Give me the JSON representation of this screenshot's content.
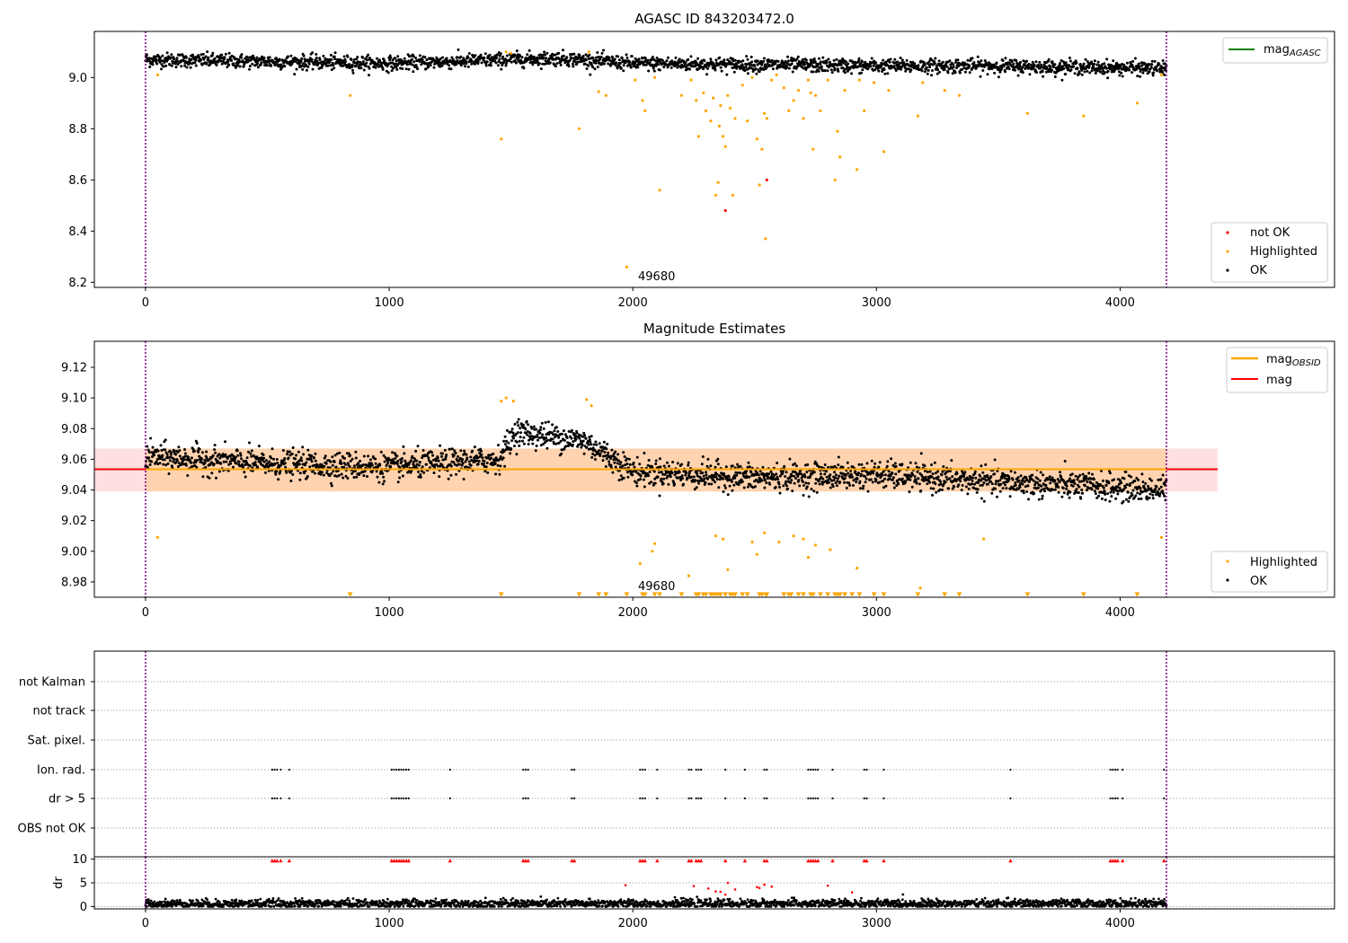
{
  "chart_data": [
    {
      "type": "scatter",
      "title": "AGASC ID 843203472.0",
      "xlabel": "",
      "ylabel": "",
      "xlim": [
        -210,
        4880
      ],
      "ylim": [
        8.18,
        9.18
      ],
      "xticks": [
        0,
        1000,
        2000,
        3000,
        4000
      ],
      "yticks": [
        8.2,
        8.4,
        8.6,
        8.8,
        9.0
      ],
      "ytick_labels": [
        "8.2",
        "8.4",
        "8.6",
        "8.8",
        "9.0"
      ],
      "annotation": {
        "text": "49680",
        "x": 2010,
        "y": 8.21
      },
      "vlines": [
        0,
        4190
      ],
      "legend_lines": [
        {
          "label_main": "mag",
          "label_sub": "AGASC",
          "color": "#008000"
        }
      ],
      "legend_markers": [
        {
          "label": "not OK",
          "color": "#ff0000"
        },
        {
          "label": "Highlighted",
          "color": "#ffa500"
        },
        {
          "label": "OK",
          "color": "#000000"
        }
      ],
      "series": [
        {
          "name": "OK",
          "color": "#000000",
          "x_range": [
            0,
            4190
          ],
          "trend": [
            [
              0,
              9.07
            ],
            [
              1000,
              9.055
            ],
            [
              1500,
              9.07
            ],
            [
              1700,
              9.075
            ],
            [
              2000,
              9.055
            ],
            [
              2500,
              9.05
            ],
            [
              3000,
              9.045
            ],
            [
              3500,
              9.045
            ],
            [
              4190,
              9.035
            ]
          ],
          "spread": 0.025,
          "n": 2400
        },
        {
          "name": "Highlighted",
          "color": "#ffa500",
          "points": [
            [
              50,
              9.01
            ],
            [
              840,
              8.93
            ],
            [
              1460,
              8.76
            ],
            [
              1480,
              9.1
            ],
            [
              1500,
              9.095
            ],
            [
              1780,
              8.8
            ],
            [
              1820,
              9.1
            ],
            [
              1860,
              8.945
            ],
            [
              1890,
              8.93
            ],
            [
              1975,
              8.26
            ],
            [
              2010,
              8.99
            ],
            [
              2040,
              8.91
            ],
            [
              2050,
              8.87
            ],
            [
              2090,
              9.0
            ],
            [
              2110,
              8.56
            ],
            [
              2200,
              8.93
            ],
            [
              2240,
              8.99
            ],
            [
              2260,
              8.91
            ],
            [
              2270,
              8.77
            ],
            [
              2290,
              8.94
            ],
            [
              2300,
              8.87
            ],
            [
              2320,
              8.83
            ],
            [
              2330,
              8.92
            ],
            [
              2340,
              8.54
            ],
            [
              2350,
              8.59
            ],
            [
              2355,
              8.81
            ],
            [
              2360,
              8.89
            ],
            [
              2370,
              8.77
            ],
            [
              2380,
              8.73
            ],
            [
              2390,
              8.93
            ],
            [
              2400,
              8.88
            ],
            [
              2410,
              8.54
            ],
            [
              2420,
              8.84
            ],
            [
              2450,
              8.97
            ],
            [
              2470,
              8.83
            ],
            [
              2490,
              9.0
            ],
            [
              2510,
              8.76
            ],
            [
              2520,
              8.58
            ],
            [
              2530,
              8.72
            ],
            [
              2540,
              8.86
            ],
            [
              2545,
              8.37
            ],
            [
              2550,
              8.84
            ],
            [
              2570,
              8.99
            ],
            [
              2590,
              9.01
            ],
            [
              2620,
              8.96
            ],
            [
              2640,
              8.87
            ],
            [
              2660,
              8.91
            ],
            [
              2680,
              8.95
            ],
            [
              2700,
              8.84
            ],
            [
              2720,
              8.99
            ],
            [
              2730,
              8.94
            ],
            [
              2740,
              8.72
            ],
            [
              2750,
              8.93
            ],
            [
              2770,
              8.87
            ],
            [
              2800,
              8.99
            ],
            [
              2830,
              8.6
            ],
            [
              2840,
              8.79
            ],
            [
              2850,
              8.69
            ],
            [
              2870,
              8.95
            ],
            [
              2920,
              8.64
            ],
            [
              2930,
              8.99
            ],
            [
              2950,
              8.87
            ],
            [
              2990,
              8.98
            ],
            [
              3030,
              8.71
            ],
            [
              3050,
              8.95
            ],
            [
              3170,
              8.85
            ],
            [
              3190,
              8.98
            ],
            [
              3280,
              8.95
            ],
            [
              3340,
              8.93
            ],
            [
              3620,
              8.86
            ],
            [
              3850,
              8.85
            ],
            [
              4070,
              8.9
            ],
            [
              4170,
              9.01
            ]
          ]
        },
        {
          "name": "not OK",
          "color": "#ff0000",
          "points": [
            [
              2380,
              8.48
            ],
            [
              2550,
              8.6
            ]
          ]
        }
      ],
      "hline": {
        "label": "mag AGASC",
        "color": "#008000",
        "y": 9.053
      }
    },
    {
      "type": "scatter",
      "title": "Magnitude Estimates",
      "xlabel": "",
      "ylabel": "",
      "xlim": [
        -210,
        4880
      ],
      "ylim": [
        8.97,
        9.137
      ],
      "xticks": [
        0,
        1000,
        2000,
        3000,
        4000
      ],
      "yticks": [
        8.98,
        9.0,
        9.02,
        9.04,
        9.06,
        9.08,
        9.1,
        9.12
      ],
      "ytick_labels": [
        "8.98",
        "9.00",
        "9.02",
        "9.04",
        "9.06",
        "9.08",
        "9.10",
        "9.12"
      ],
      "annotation": {
        "text": "49680",
        "x": 2010,
        "y": 8.973
      },
      "vlines": [
        0,
        4190
      ],
      "band": {
        "y_low": 9.039,
        "y_high": 9.067,
        "x_range": [
          -210,
          4400
        ],
        "colors": [
          "#ffa500",
          "#ff0000"
        ]
      },
      "lines": [
        {
          "label_main": "mag",
          "label_sub": "OBSID",
          "color": "#ffa500",
          "y": 9.0535,
          "x_range": [
            0,
            4190
          ]
        },
        {
          "label_main": "mag",
          "label_sub": "",
          "color": "#ff0000",
          "y": 9.0535,
          "x_range": [
            -210,
            4400
          ]
        }
      ],
      "legend_markers": [
        {
          "label": "Highlighted",
          "color": "#ffa500"
        },
        {
          "label": "OK",
          "color": "#000000"
        }
      ],
      "series": [
        {
          "name": "OK",
          "color": "#000000",
          "x_range": [
            0,
            4190
          ],
          "trend": [
            [
              0,
              9.062
            ],
            [
              500,
              9.057
            ],
            [
              1000,
              9.055
            ],
            [
              1450,
              9.06
            ],
            [
              1520,
              9.078
            ],
            [
              1800,
              9.072
            ],
            [
              2000,
              9.052
            ],
            [
              2500,
              9.048
            ],
            [
              3000,
              9.05
            ],
            [
              3500,
              9.045
            ],
            [
              4190,
              9.04
            ]
          ],
          "spread": 0.008,
          "n": 2400
        },
        {
          "name": "Highlighted",
          "color": "#ffa500",
          "points": [
            [
              50,
              9.009
            ],
            [
              1460,
              9.098
            ],
            [
              1480,
              9.1
            ],
            [
              1510,
              9.098
            ],
            [
              1810,
              9.099
            ],
            [
              1830,
              9.095
            ],
            [
              2030,
              8.992
            ],
            [
              2080,
              9.0
            ],
            [
              2090,
              9.005
            ],
            [
              2230,
              8.984
            ],
            [
              2340,
              9.01
            ],
            [
              2370,
              9.008
            ],
            [
              2390,
              8.988
            ],
            [
              2490,
              9.006
            ],
            [
              2510,
              8.998
            ],
            [
              2540,
              9.012
            ],
            [
              2600,
              9.006
            ],
            [
              2660,
              9.01
            ],
            [
              2700,
              9.008
            ],
            [
              2720,
              8.996
            ],
            [
              2750,
              9.004
            ],
            [
              2810,
              9.001
            ],
            [
              2920,
              8.989
            ],
            [
              3180,
              8.976
            ],
            [
              3440,
              9.008
            ],
            [
              4170,
              9.009
            ]
          ]
        }
      ],
      "clipped_markers": {
        "label": "below",
        "color": "#ffa500",
        "x": [
          840,
          1460,
          1780,
          1860,
          1890,
          1975,
          2040,
          2050,
          2090,
          2110,
          2200,
          2260,
          2270,
          2290,
          2300,
          2320,
          2330,
          2340,
          2350,
          2360,
          2380,
          2400,
          2410,
          2420,
          2450,
          2470,
          2520,
          2530,
          2545,
          2550,
          2620,
          2640,
          2650,
          2680,
          2700,
          2730,
          2740,
          2770,
          2800,
          2830,
          2840,
          2850,
          2870,
          2900,
          2930,
          2990,
          3030,
          3170,
          3280,
          3340,
          3620,
          3850,
          4070
        ]
      }
    },
    {
      "type": "scatter",
      "title": "",
      "xlabel": "",
      "ylabel": "",
      "xlim": [
        -210,
        4880
      ],
      "categories": [
        "not Kalman",
        "not track",
        "Sat. pixel.",
        "Ion. rad.",
        "dr > 5",
        "OBS not OK"
      ],
      "flag_x": [
        520,
        530,
        540,
        555,
        590,
        1010,
        1020,
        1030,
        1040,
        1050,
        1060,
        1070,
        1080,
        1250,
        1550,
        1560,
        1570,
        1750,
        1760,
        2030,
        2040,
        2050,
        2100,
        2230,
        2240,
        2260,
        2270,
        2280,
        2380,
        2460,
        2540,
        2550,
        2720,
        2730,
        2740,
        2750,
        2760,
        2820,
        2950,
        2960,
        3030,
        3550,
        3960,
        3970,
        3980,
        3990,
        4010,
        4180
      ],
      "flag_rows": [
        "Ion. rad.",
        "dr > 5"
      ]
    },
    {
      "type": "scatter",
      "title": "",
      "xlabel": "",
      "ylabel": "dr",
      "xlim": [
        -210,
        4880
      ],
      "ylim": [
        -0.5,
        10.5
      ],
      "yticks": [
        0,
        5,
        10
      ],
      "ytick_labels": [
        "0",
        "5",
        "10"
      ],
      "series": [
        {
          "name": "OK",
          "color": "#000000",
          "x_range": [
            0,
            4190
          ],
          "trend": [
            [
              0,
              0.6
            ],
            [
              4190,
              0.6
            ]
          ],
          "spread": 0.45,
          "n": 2400
        },
        {
          "name": "not OK",
          "color": "#ff0000",
          "points": [
            [
              1970,
              4.5
            ],
            [
              2250,
              4.3
            ],
            [
              2310,
              3.8
            ],
            [
              2340,
              3.2
            ],
            [
              2360,
              3.1
            ],
            [
              2380,
              2.5
            ],
            [
              2390,
              5.0
            ],
            [
              2420,
              3.6
            ],
            [
              2510,
              4.1
            ],
            [
              2520,
              3.9
            ],
            [
              2540,
              4.6
            ],
            [
              2570,
              4.2
            ],
            [
              2800,
              4.4
            ],
            [
              2900,
              3.0
            ]
          ]
        },
        {
          "name": "capped",
          "color": "#ff0000",
          "x": [
            520,
            530,
            540,
            555,
            590,
            1010,
            1020,
            1030,
            1040,
            1050,
            1060,
            1070,
            1080,
            1250,
            1550,
            1560,
            1570,
            1750,
            1760,
            2030,
            2040,
            2050,
            2100,
            2230,
            2240,
            2260,
            2270,
            2280,
            2380,
            2460,
            2540,
            2550,
            2720,
            2730,
            2740,
            2750,
            2760,
            2820,
            2950,
            2960,
            3030,
            3550,
            3960,
            3970,
            3980,
            3990,
            4010,
            4180
          ],
          "y": 9.7
        }
      ]
    }
  ]
}
